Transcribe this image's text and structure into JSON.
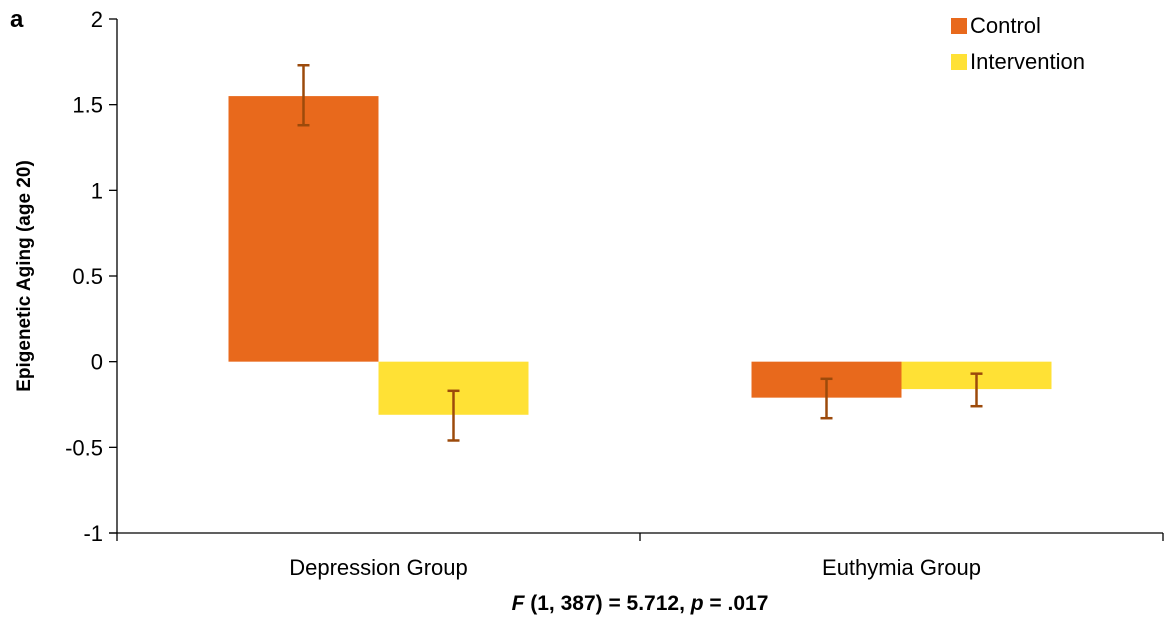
{
  "panel_label": "a",
  "note": {
    "f_symbol": "F",
    "f_args": " (1, 387) = 5.712, ",
    "p_symbol": "p",
    "p_value": " = .017"
  },
  "colors": {
    "control": "#E8691C",
    "intervention": "#FFE135",
    "error_bar": "#9C4A0B",
    "axis": "#000000"
  },
  "chart_data": {
    "type": "bar",
    "categories": [
      "Depression Group",
      "Euthymia Group"
    ],
    "series": [
      {
        "name": "Control",
        "values": [
          1.55,
          -0.21
        ],
        "error_low": [
          1.38,
          -0.33
        ],
        "error_high": [
          1.73,
          -0.1
        ]
      },
      {
        "name": "Intervention",
        "values": [
          -0.31,
          -0.16
        ],
        "error_low": [
          -0.46,
          -0.26
        ],
        "error_high": [
          -0.17,
          -0.07
        ]
      }
    ],
    "title": "",
    "xlabel": "",
    "ylabel": "Epigenetic Aging (age 20)",
    "ylim": [
      -1,
      2
    ],
    "yticks": [
      -1,
      -0.5,
      0,
      0.5,
      1,
      1.5,
      2
    ],
    "ytick_labels": [
      "-1",
      "-0.5",
      "0",
      "0.5",
      "1",
      "1.5",
      "2"
    ],
    "grid": false,
    "legend_position": "top-right"
  }
}
